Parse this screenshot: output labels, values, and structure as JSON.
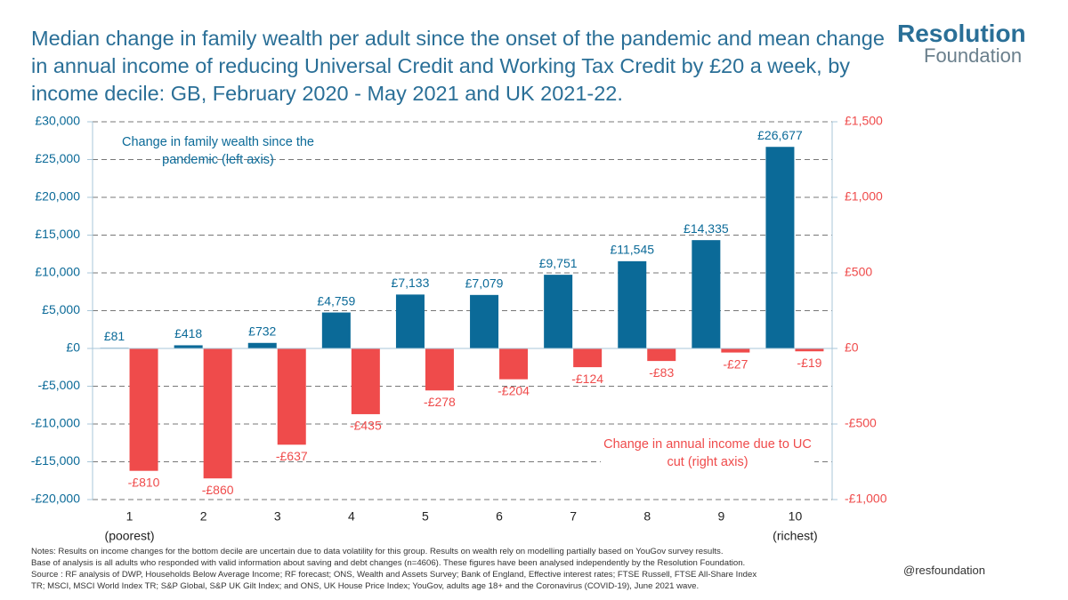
{
  "chart_data": {
    "type": "bar",
    "title": "Median change in family wealth per adult since the onset of the pandemic and mean change in annual income of reducing Universal Credit and Working Tax Credit by £20 a week, by income decile: GB, February 2020 - May 2021 and UK 2021-22.",
    "categories": [
      "1",
      "2",
      "3",
      "4",
      "5",
      "6",
      "7",
      "8",
      "9",
      "10"
    ],
    "category_sublabels": [
      "(poorest)",
      null,
      null,
      null,
      null,
      null,
      null,
      null,
      null,
      "(richest)"
    ],
    "series": [
      {
        "name": "Change in family wealth since the pandemic (left axis)",
        "color": "#0b6a98",
        "axis": "y",
        "values": [
          81,
          418,
          732,
          4759,
          7133,
          7079,
          9751,
          11545,
          14335,
          26677
        ],
        "value_labels": [
          "£81",
          "£418",
          "£732",
          "£4,759",
          "£7,133",
          "£7,079",
          "£9,751",
          "£11,545",
          "£14,335",
          "£26,677"
        ]
      },
      {
        "name": "Change in annual income due to UC cut (right axis)",
        "color": "#ef4b4b",
        "axis": "y2",
        "values": [
          -810,
          -860,
          -637,
          -435,
          -278,
          -204,
          -124,
          -83,
          -27,
          -19
        ],
        "value_labels": [
          "-£810",
          "-£860",
          "-£637",
          "-£435",
          "-£278",
          "-£204",
          "-£124",
          "-£83",
          "-£27",
          "-£19"
        ]
      }
    ],
    "ylim": [
      -20000,
      30000
    ],
    "yticks": [
      {
        "value": -20000,
        "label": "-£20,000"
      },
      {
        "value": -15000,
        "label": "-£15,000"
      },
      {
        "value": -10000,
        "label": "-£10,000"
      },
      {
        "value": -5000,
        "label": "-£5,000"
      },
      {
        "value": 0,
        "label": "£0"
      },
      {
        "value": 5000,
        "label": "£5,000"
      },
      {
        "value": 10000,
        "label": "£10,000"
      },
      {
        "value": 15000,
        "label": "£15,000"
      },
      {
        "value": 20000,
        "label": "£20,000"
      },
      {
        "value": 25000,
        "label": "£25,000"
      },
      {
        "value": 30000,
        "label": "£30,000"
      }
    ],
    "y2lim": [
      -1000,
      1500
    ],
    "y2ticks": [
      {
        "value": -1000,
        "label": "-£1,000"
      },
      {
        "value": -500,
        "label": "-£500"
      },
      {
        "value": 0,
        "label": "£0"
      },
      {
        "value": 500,
        "label": "£500"
      },
      {
        "value": 1000,
        "label": "£1,000"
      },
      {
        "value": 1500,
        "label": "£1,500"
      }
    ],
    "grid": true,
    "notes": [
      "Notes: Results on income changes for the bottom decile are uncertain due to data volatility for this group. Results on wealth rely on modelling partially based on YouGov survey results.",
      "Base of analysis is all adults who responded with valid information about saving and debt changes (n=4606). These figures have been analysed independently by the Resolution Foundation.",
      "Source : RF analysis of DWP, Households Below Average Income; RF forecast; ONS, Wealth and Assets Survey; Bank of England, Effective interest rates; FTSE Russell, FTSE All-Share Index",
      "TR; MSCI, MSCI World Index TR; S&P Global, S&P UK Gilt Index; and ONS, UK House Price Index; YouGov, adults age 18+ and the Coronavirus (COVID-19), June 2021 wave."
    ],
    "logo": {
      "line1": "Resolution",
      "line2": "Foundation"
    },
    "handle": "@resfoundation"
  }
}
